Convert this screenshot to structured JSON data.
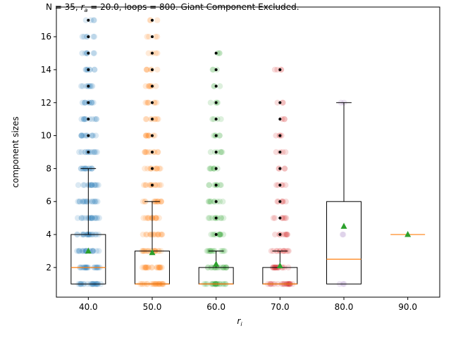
{
  "chart_data": {
    "type": "box",
    "title_parts": {
      "prefix": "N = 35, ",
      "var": "r",
      "sub": "a",
      "rest": " = 20.0, loops = 800. Giant Component Excluded."
    },
    "xlabel": {
      "var": "r",
      "sub": "i"
    },
    "ylabel": "component sizes",
    "categories": [
      "40.0",
      "50.0",
      "60.0",
      "70.0",
      "80.0",
      "90.0"
    ],
    "yticks": [
      2,
      4,
      6,
      8,
      10,
      12,
      14,
      16
    ],
    "ylim": [
      0.2,
      17.8
    ],
    "grid": false,
    "colors": {
      "series": [
        "#1f77b4",
        "#ff7f0e",
        "#2ca02c",
        "#d62728",
        "#9467bd",
        "#8c564b"
      ],
      "median": "#ff7f0e",
      "mean_marker": "#2ca02c",
      "box": "#000000"
    },
    "boxes": [
      {
        "category": "40.0",
        "q1": 1,
        "median": 2,
        "q3": 4,
        "whisker_low": 1,
        "whisker_high": 8,
        "mean": 3.0,
        "fliers": [
          9,
          10,
          11,
          12,
          13,
          14,
          15,
          16,
          17
        ],
        "strip_values": [
          1,
          2,
          3,
          4,
          5,
          6,
          7,
          8,
          9,
          10,
          11,
          12,
          13,
          14,
          15,
          16,
          17
        ],
        "strip_density": [
          1.0,
          0.95,
          0.9,
          0.85,
          0.8,
          0.75,
          0.7,
          0.65,
          0.6,
          0.55,
          0.5,
          0.45,
          0.4,
          0.35,
          0.3,
          0.25,
          0.2
        ]
      },
      {
        "category": "50.0",
        "q1": 1,
        "median": 1,
        "q3": 3,
        "whisker_low": 1,
        "whisker_high": 6,
        "mean": 2.9,
        "fliers": [
          7,
          8,
          9,
          10,
          11,
          12,
          13,
          14,
          15,
          16,
          17
        ],
        "strip_values": [
          1,
          2,
          3,
          4,
          5,
          6,
          7,
          8,
          9,
          10,
          11,
          12,
          13,
          14,
          15,
          16,
          17
        ],
        "strip_density": [
          1.0,
          0.9,
          0.8,
          0.7,
          0.65,
          0.6,
          0.55,
          0.5,
          0.45,
          0.4,
          0.35,
          0.3,
          0.3,
          0.25,
          0.2,
          0.2,
          0.15
        ]
      },
      {
        "category": "60.0",
        "q1": 1,
        "median": 1,
        "q3": 2,
        "whisker_low": 1,
        "whisker_high": 3,
        "mean": 2.2,
        "fliers": [
          4,
          5,
          6,
          7,
          8,
          9,
          10,
          11,
          12,
          13,
          14,
          15
        ],
        "strip_values": [
          1,
          2,
          3,
          4,
          5,
          6,
          7,
          8,
          9,
          10,
          11,
          12,
          13,
          14,
          15
        ],
        "strip_density": [
          1.0,
          0.8,
          0.6,
          0.5,
          0.45,
          0.4,
          0.35,
          0.3,
          0.25,
          0.22,
          0.2,
          0.18,
          0.15,
          0.14,
          0.12
        ]
      },
      {
        "category": "70.0",
        "q1": 1,
        "median": 1,
        "q3": 2,
        "whisker_low": 1,
        "whisker_high": 3,
        "mean": 2.1,
        "fliers": [
          4,
          5,
          6,
          7,
          8,
          9,
          10,
          11,
          12,
          14
        ],
        "strip_values": [
          1,
          2,
          3,
          4,
          5,
          6,
          7,
          8,
          9,
          10,
          11,
          12,
          14
        ],
        "strip_density": [
          1.0,
          0.75,
          0.55,
          0.4,
          0.3,
          0.25,
          0.22,
          0.2,
          0.18,
          0.16,
          0.14,
          0.12,
          0.2
        ]
      },
      {
        "category": "80.0",
        "q1": 1,
        "median": 2.5,
        "q3": 6,
        "whisker_low": 1,
        "whisker_high": 12,
        "mean": 4.5,
        "fliers": [],
        "strip_values": [
          1,
          4,
          12
        ],
        "strip_density": [
          0.12,
          0.1,
          0.1
        ]
      },
      {
        "category": "90.0",
        "q1": 4,
        "median": 4,
        "q3": 4,
        "whisker_low": 4,
        "whisker_high": 4,
        "mean": 4.0,
        "fliers": [],
        "strip_values": [],
        "strip_density": []
      }
    ]
  }
}
